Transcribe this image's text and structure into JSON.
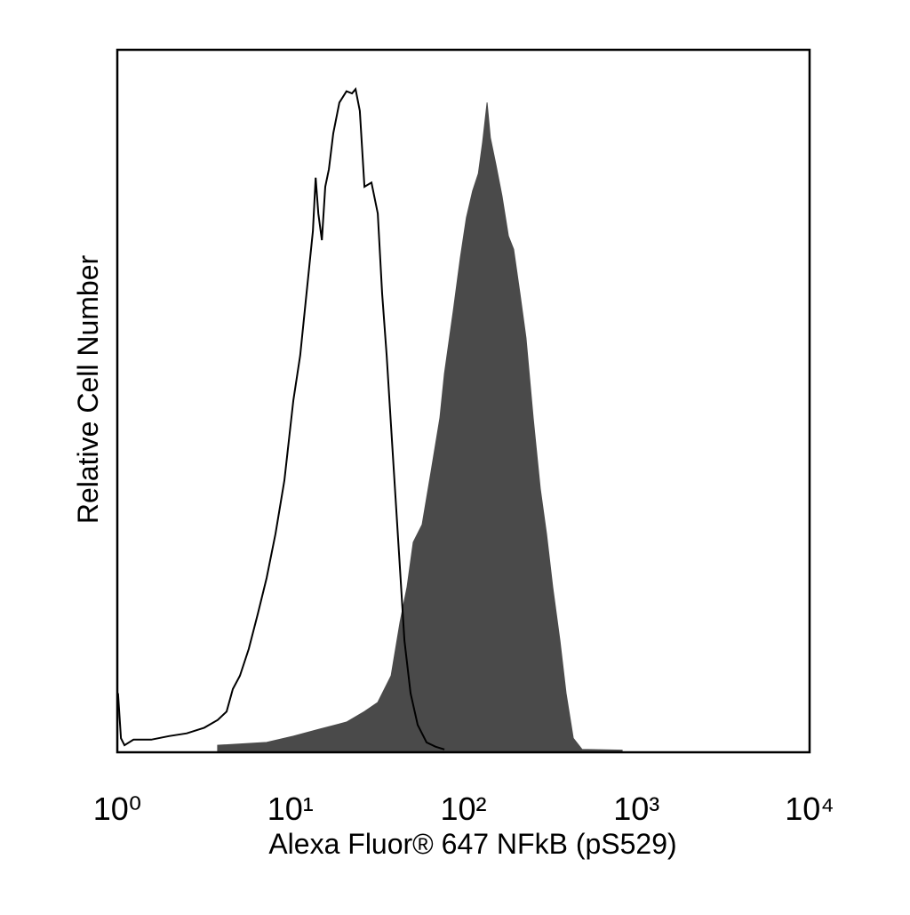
{
  "chart_data": {
    "type": "histogram",
    "x_label": "Alexa Fluor® 647 NFkB (pS529)",
    "y_label": "Relative Cell Number",
    "x_scale": "log",
    "xlim": [
      1,
      10000
    ],
    "xticks": [
      {
        "value": 1,
        "label": "10⁰"
      },
      {
        "value": 10,
        "label": "10¹"
      },
      {
        "value": 100,
        "label": "10²"
      },
      {
        "value": 1000,
        "label": "10³"
      },
      {
        "value": 10000,
        "label": "10⁴"
      }
    ],
    "ylim": [
      0,
      100
    ],
    "series": [
      {
        "color": "#4a4a4a",
        "filled": true,
        "x": [
          3.8,
          7.29,
          10.4,
          14.8,
          21.1,
          26.8,
          32.0,
          38.2,
          43.0,
          47.2,
          51.3,
          57.7,
          65.0,
          73.1,
          77.6,
          87.3,
          95.9,
          104,
          113,
          122,
          129,
          137,
          143,
          154,
          167,
          182,
          195,
          212,
          230,
          253,
          278,
          302,
          328,
          361,
          392,
          431,
          485,
          826
        ],
        "values": [
          1.0,
          1.4,
          2.3,
          3.3,
          4.3,
          5.8,
          7.1,
          10.9,
          18.5,
          23.5,
          29.9,
          32.4,
          40.0,
          47.6,
          53.9,
          62.8,
          70.4,
          76.1,
          79.9,
          82.4,
          86.8,
          92.5,
          87.5,
          83.7,
          79.2,
          73.5,
          71.6,
          65.3,
          59.0,
          47.6,
          37.5,
          31.1,
          23.5,
          15.9,
          8.4,
          2.0,
          0.4,
          0.3
        ]
      },
      {
        "color": "#000000",
        "filled": false,
        "x": [
          1.01,
          1.05,
          1.1,
          1.24,
          1.57,
          1.99,
          2.52,
          3.18,
          3.8,
          4.28,
          4.65,
          5.11,
          5.75,
          6.48,
          7.29,
          8.2,
          9.23,
          10.4,
          11.4,
          12.4,
          13.5,
          14.0,
          14.5,
          15.2,
          15.9,
          16.7,
          17.7,
          19.2,
          21.1,
          22.7,
          23.8,
          25.2,
          26.8,
          29.4,
          32.0,
          33.9,
          36.0,
          38.2,
          40.5,
          43.0,
          45.6,
          49.5,
          54.4,
          61.2,
          68.9,
          77.6
        ],
        "values": [
          8.4,
          2.0,
          1.0,
          1.8,
          1.8,
          2.3,
          2.7,
          3.5,
          4.6,
          5.8,
          9.0,
          10.9,
          14.7,
          19.7,
          24.8,
          31.1,
          38.7,
          50.1,
          56.5,
          65.3,
          74.2,
          81.8,
          76.7,
          72.9,
          80.5,
          83.0,
          88.1,
          92.5,
          94.1,
          93.8,
          94.4,
          91.3,
          80.5,
          81.1,
          76.7,
          65.3,
          56.5,
          46.3,
          36.2,
          26.1,
          15.9,
          8.4,
          3.9,
          1.4,
          0.8,
          0.4
        ]
      }
    ]
  }
}
